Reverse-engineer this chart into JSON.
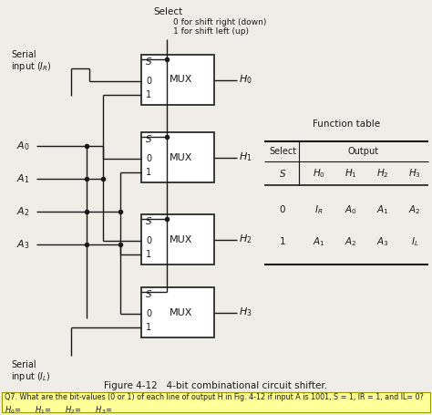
{
  "bg_color": "#f0ede8",
  "line_color": "#1a1a1a",
  "box_color": "#ffffff",
  "title": "Figure 4-12   4-bit combinational circuit shifter.",
  "select_label": "Select",
  "select_desc_line1": "0 for shift right (down)",
  "select_desc_line2": "1 for shift left (up)",
  "serial_R_line1": "Serial",
  "serial_R_line2": "input ($I_R$)",
  "serial_L_line1": "Serial",
  "serial_L_line2": "input ($I_L$)",
  "A_labels": [
    "$A_0$",
    "$A_1$",
    "$A_2$",
    "$A_3$"
  ],
  "H_labels": [
    "$H_0$",
    "$H_1$",
    "$H_2$",
    "$H_3$"
  ],
  "q7_text": "Q7. What are the bit-values (0 or 1) of each line of output H in Fig. 4-12 if input A is 1001, S = 1, IR = 1, and IL= 0?",
  "q7_ans": "$H_0$=      $H_1$=      $H_2$=      $H_3$=",
  "q7_bg": "#ffff99",
  "ft_title": "Function table",
  "ft_col_s": "S",
  "ft_col_select": "Select",
  "ft_col_output": "Output",
  "ft_cols": [
    "$S$",
    "$H_0$",
    "$H_1$",
    "$H_2$",
    "$H_3$"
  ],
  "ft_row0": [
    "0",
    "$I_R$",
    "$A_0$",
    "$A_1$",
    "$A_2$"
  ],
  "ft_row1": [
    "1",
    "$A_1$",
    "$A_2$",
    "$A_3$",
    "$I_L$"
  ]
}
